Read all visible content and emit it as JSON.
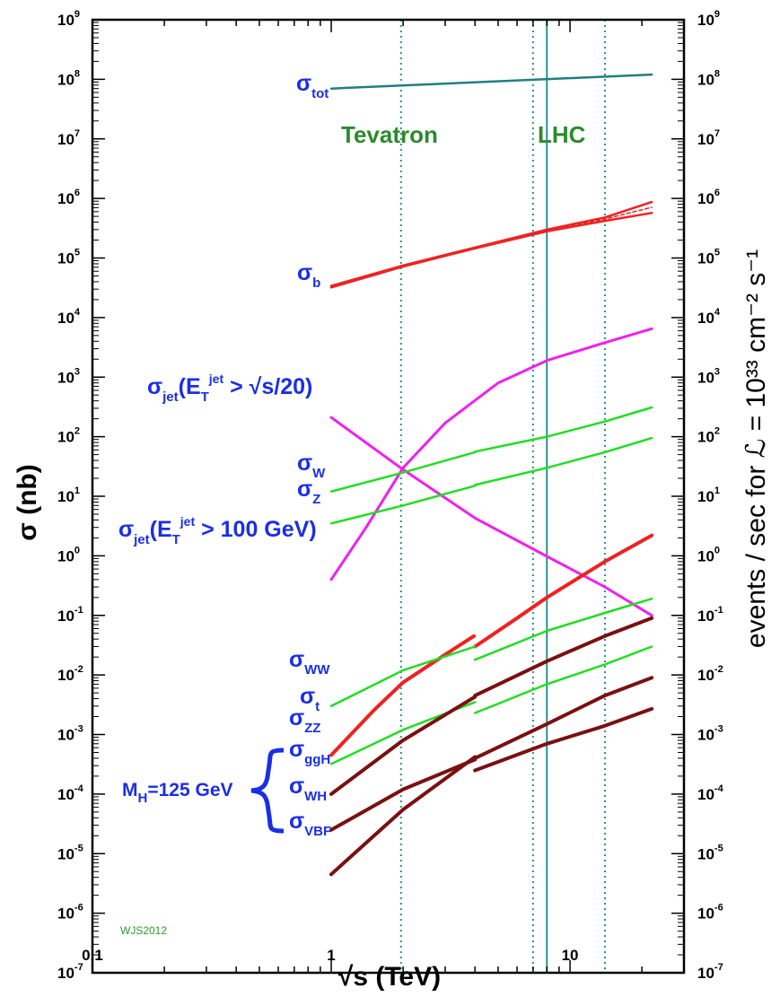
{
  "chart_data": {
    "type": "line",
    "xlabel": "√s  (TeV)",
    "ylabel": "σ  (nb)",
    "y2label": "events / sec for ℒ = 10³³ cm⁻² s⁻¹",
    "xscale": "log",
    "yscale": "log",
    "xlim": [
      0.1,
      30
    ],
    "ylim": [
      1e-07,
      1000000000.0
    ],
    "x_ticks": [
      "0.1",
      "1",
      "10"
    ],
    "y_ticks": [
      {
        "base": "10",
        "exp": "-7"
      },
      {
        "base": "10",
        "exp": "-6"
      },
      {
        "base": "10",
        "exp": "-5"
      },
      {
        "base": "10",
        "exp": "-4"
      },
      {
        "base": "10",
        "exp": "-3"
      },
      {
        "base": "10",
        "exp": "-2"
      },
      {
        "base": "10",
        "exp": "-1"
      },
      {
        "base": "10",
        "exp": "0"
      },
      {
        "base": "10",
        "exp": "1"
      },
      {
        "base": "10",
        "exp": "2"
      },
      {
        "base": "10",
        "exp": "3"
      },
      {
        "base": "10",
        "exp": "4"
      },
      {
        "base": "10",
        "exp": "5"
      },
      {
        "base": "10",
        "exp": "6"
      },
      {
        "base": "10",
        "exp": "7"
      },
      {
        "base": "10",
        "exp": "8"
      },
      {
        "base": "10",
        "exp": "9"
      }
    ],
    "region_labels": {
      "tevatron": "Tevatron",
      "lhc": "LHC"
    },
    "vertical_lines": [
      {
        "x": 1.96,
        "style": "dotted",
        "color": "#2a9090"
      },
      {
        "x": 7,
        "style": "dotted",
        "color": "#2a9090"
      },
      {
        "x": 8,
        "style": "solid",
        "color": "#2a9090"
      },
      {
        "x": 14,
        "style": "dotted",
        "color": "#2a9090"
      }
    ],
    "series": [
      {
        "key": "tot",
        "color": "#1f7f80",
        "width": 2.5,
        "x": [
          1,
          22
        ],
        "y": [
          70000000,
          120000000
        ]
      },
      {
        "key": "b_a",
        "color": "#ee2222",
        "width": 2.5,
        "x": [
          1,
          2,
          4,
          8,
          14,
          22
        ],
        "y": [
          34000,
          75000,
          150000,
          300000,
          480000,
          870000
        ]
      },
      {
        "key": "b_b",
        "color": "#ee2222",
        "width": 2.5,
        "x": [
          1,
          2,
          4,
          8,
          14,
          22
        ],
        "y": [
          32000,
          72000,
          145000,
          280000,
          420000,
          570000
        ]
      },
      {
        "key": "b_c",
        "color": "#ee2222",
        "width": 1.5,
        "x": [
          8,
          14,
          22
        ],
        "y": [
          290000,
          450000,
          710000
        ],
        "dash": "4,3"
      },
      {
        "key": "jet_rising",
        "color": "#ee22ee",
        "width": 3,
        "x": [
          1,
          1.4,
          2,
          3,
          5,
          8,
          14,
          22
        ],
        "y": [
          0.4,
          3,
          30,
          170,
          800,
          1900,
          3800,
          6500
        ]
      },
      {
        "key": "jet_falling",
        "color": "#ee22ee",
        "width": 3,
        "x": [
          1,
          2,
          4,
          8,
          14,
          22
        ],
        "y": [
          210,
          28,
          4.3,
          0.98,
          0.3,
          0.1
        ]
      },
      {
        "key": "W_low",
        "color": "#22dd22",
        "width": 2.5,
        "x": [
          1,
          2,
          4
        ],
        "y": [
          12,
          25,
          55
        ]
      },
      {
        "key": "W_high",
        "color": "#22dd22",
        "width": 2.5,
        "x": [
          4,
          8,
          14,
          22
        ],
        "y": [
          56,
          100,
          180,
          310
        ]
      },
      {
        "key": "Z_low",
        "color": "#22dd22",
        "width": 2.5,
        "x": [
          1,
          2,
          4
        ],
        "y": [
          3.5,
          7,
          15
        ]
      },
      {
        "key": "Z_high",
        "color": "#22dd22",
        "width": 2.5,
        "x": [
          4,
          8,
          14,
          22
        ],
        "y": [
          15.5,
          30,
          55,
          95
        ]
      },
      {
        "key": "t_low",
        "color": "#ee2222",
        "width": 4,
        "x": [
          1,
          1.5,
          2,
          3,
          3.96
        ],
        "y": [
          0.00045,
          0.0025,
          0.0075,
          0.022,
          0.045
        ]
      },
      {
        "key": "t_high",
        "color": "#ee2222",
        "width": 4,
        "x": [
          4,
          6,
          8,
          14,
          22
        ],
        "y": [
          0.03,
          0.09,
          0.2,
          0.8,
          2.2
        ]
      },
      {
        "key": "WW_low",
        "color": "#22dd22",
        "width": 2.5,
        "x": [
          1,
          2,
          4
        ],
        "y": [
          0.003,
          0.012,
          0.03
        ]
      },
      {
        "key": "WW_high",
        "color": "#22dd22",
        "width": 2.5,
        "x": [
          4,
          8,
          14,
          22
        ],
        "y": [
          0.018,
          0.055,
          0.11,
          0.19
        ]
      },
      {
        "key": "ZZ_low",
        "color": "#22dd22",
        "width": 2.5,
        "x": [
          1,
          2,
          4
        ],
        "y": [
          0.00032,
          0.0012,
          0.0035
        ]
      },
      {
        "key": "ZZ_high",
        "color": "#22dd22",
        "width": 2.5,
        "x": [
          4,
          8,
          14,
          22
        ],
        "y": [
          0.0023,
          0.007,
          0.015,
          0.03
        ]
      },
      {
        "key": "ggH_low",
        "color": "#7a1010",
        "width": 4,
        "x": [
          1,
          2,
          4
        ],
        "y": [
          0.0001,
          0.0008,
          0.0043
        ]
      },
      {
        "key": "ggH_high",
        "color": "#7a1010",
        "width": 4,
        "x": [
          4,
          8,
          14,
          22
        ],
        "y": [
          0.0045,
          0.017,
          0.045,
          0.09
        ]
      },
      {
        "key": "WH_low",
        "color": "#7a1010",
        "width": 4,
        "x": [
          1,
          2,
          4
        ],
        "y": [
          2.5e-05,
          0.00012,
          0.00038
        ]
      },
      {
        "key": "WH_high",
        "color": "#7a1010",
        "width": 4,
        "x": [
          4,
          8,
          14,
          22
        ],
        "y": [
          0.00025,
          0.0007,
          0.0014,
          0.0027
        ]
      },
      {
        "key": "VBF_low",
        "color": "#7a1010",
        "width": 4,
        "x": [
          1,
          2,
          4
        ],
        "y": [
          4.5e-06,
          5.5e-05,
          0.00042
        ]
      },
      {
        "key": "VBF_high",
        "color": "#7a1010",
        "width": 4,
        "x": [
          4,
          8,
          14,
          22
        ],
        "y": [
          0.0004,
          0.0015,
          0.0045,
          0.009
        ]
      }
    ],
    "annotations": {
      "sigma": "σ",
      "tot": "tot",
      "b": "b",
      "jet": "jet",
      "et_prefix": "(E",
      "et_sub": "T",
      "jet_sup": "jet",
      "jet1_cond": " > √s/20)",
      "jet2_cond": " > 100 GeV)",
      "W": "W",
      "Z": "Z",
      "WW": "WW",
      "t": "t",
      "ZZ": "ZZ",
      "ggH": "ggH",
      "WH": "WH",
      "VBF": "VBF",
      "mh_prefix": "M",
      "mh_sub": "H",
      "mh_value": "=125 GeV"
    },
    "credit": "WJS2012"
  }
}
